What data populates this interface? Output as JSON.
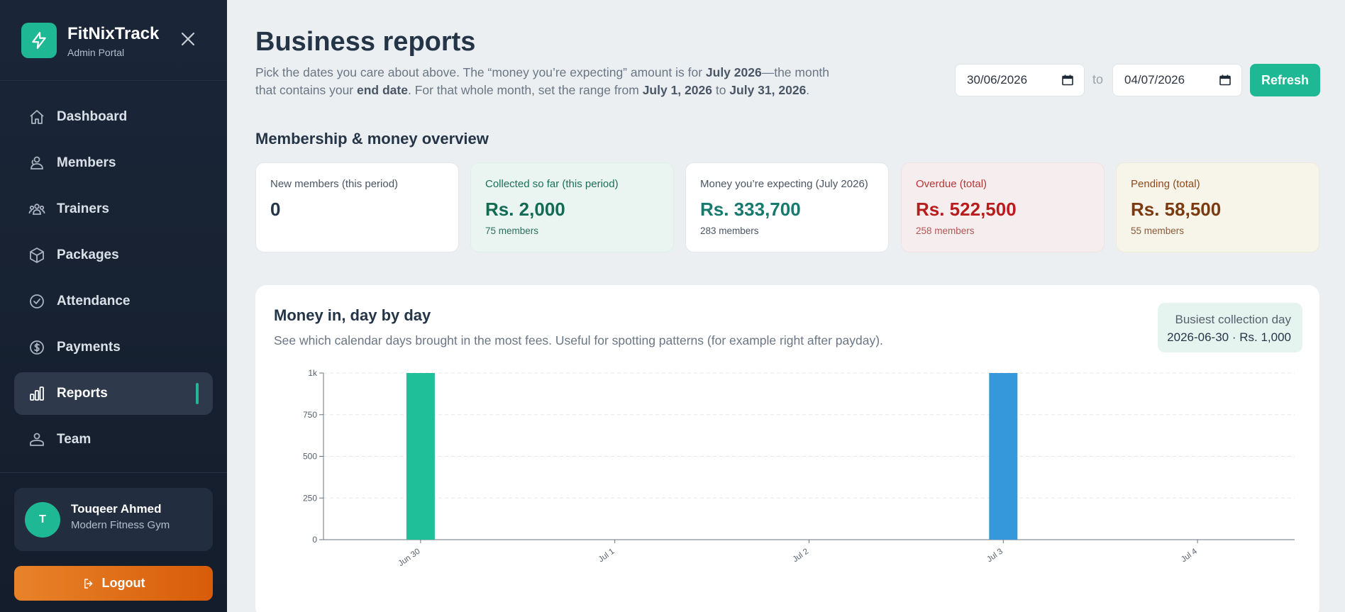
{
  "sidebar": {
    "app_name": "FitNixTrack",
    "app_subtitle": "Admin Portal",
    "items": [
      {
        "label": "Dashboard",
        "icon": "home-icon",
        "active": false
      },
      {
        "label": "Members",
        "icon": "users-icon",
        "active": false
      },
      {
        "label": "Trainers",
        "icon": "trainers-icon",
        "active": false
      },
      {
        "label": "Packages",
        "icon": "package-icon",
        "active": false
      },
      {
        "label": "Attendance",
        "icon": "check-circle-icon",
        "active": false
      },
      {
        "label": "Payments",
        "icon": "dollar-icon",
        "active": false
      },
      {
        "label": "Reports",
        "icon": "bar-chart-icon",
        "active": true
      },
      {
        "label": "Team",
        "icon": "team-icon",
        "active": false
      }
    ],
    "user": {
      "initial": "T",
      "name": "Touqeer Ahmed",
      "org": "Modern Fitness Gym"
    },
    "logout_label": "Logout"
  },
  "header": {
    "title": "Business reports",
    "desc": {
      "p1": "Pick the dates you care about above. The “money you’re expecting” amount is for ",
      "b1": "July 2026",
      "p2": "—the month that contains your ",
      "b2": "end date",
      "p3": ". For that whole month, set the range from ",
      "b3": "July 1, 2026",
      "p4": " to ",
      "b4": "July 31, 2026",
      "p5": "."
    },
    "date_from": "30/06/2026",
    "date_to": "04/07/2026",
    "to_label": "to",
    "refresh_label": "Refresh"
  },
  "overview": {
    "title": "Membership & money overview",
    "cards": [
      {
        "label": "New members (this period)",
        "value": "0",
        "sub": "",
        "theme": "neutral"
      },
      {
        "label": "Collected so far (this period)",
        "value": "Rs. 2,000",
        "sub": "75 members",
        "theme": "green"
      },
      {
        "label": "Money you’re expecting (July 2026)",
        "value": "Rs. 333,700",
        "sub": "283 members",
        "theme": "teal"
      },
      {
        "label": "Overdue (total)",
        "value": "Rs. 522,500",
        "sub": "258 members",
        "theme": "red"
      },
      {
        "label": "Pending (total)",
        "value": "Rs. 58,500",
        "sub": "55 members",
        "theme": "amber"
      }
    ]
  },
  "chart_panel": {
    "title": "Money in, day by day",
    "desc": "See which calendar days brought in the most fees. Useful for spotting patterns (for example right after payday).",
    "busiest_label": "Busiest collection day",
    "busiest_value": "2026-06-30 · Rs. 1,000"
  },
  "chart_data": {
    "type": "bar",
    "categories": [
      "Jun 30",
      "Jul 1",
      "Jul 2",
      "Jul 3",
      "Jul 4"
    ],
    "values": [
      1000,
      0,
      0,
      1000,
      0
    ],
    "bar_colors": [
      "#1fbf9a",
      "#1fbf9a",
      "#1fbf9a",
      "#3498db",
      "#1fbf9a"
    ],
    "yticks": [
      0,
      250,
      500,
      750,
      1000
    ],
    "ytick_labels": [
      "0",
      "250",
      "500",
      "750",
      "1k"
    ],
    "ylim": [
      0,
      1000
    ],
    "grid": true,
    "title": "",
    "xlabel": "",
    "ylabel": ""
  },
  "colors": {
    "accent": "#1fb894",
    "sidebar_bg": "#1a2638",
    "logout": "#e07020"
  }
}
